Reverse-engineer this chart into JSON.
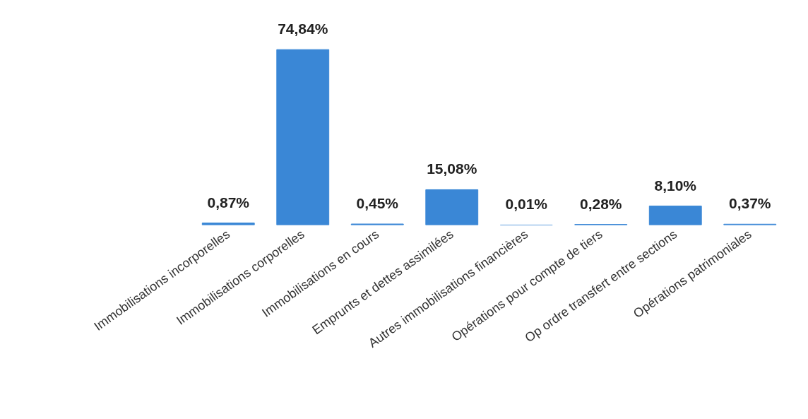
{
  "chart_data": {
    "type": "bar",
    "categories": [
      "Immobilisations incorporelles",
      "Immobilisations corporelles",
      "Immobilisations en cours",
      "Emprunts et dettes assimilées",
      "Autres immobilisations financières",
      "Opérations pour compte de tiers",
      "Op ordre transfert entre sections",
      "Opérations patrimoniales"
    ],
    "values": [
      0.87,
      74.84,
      0.45,
      15.08,
      0.01,
      0.28,
      8.1,
      0.37
    ],
    "value_labels": [
      "0,87%",
      "74,84%",
      "0,45%",
      "15,08%",
      "0,01%",
      "0,28%",
      "8,10%",
      "0,37%"
    ],
    "color": "#3a87d6",
    "tick_labels": "x"
  }
}
